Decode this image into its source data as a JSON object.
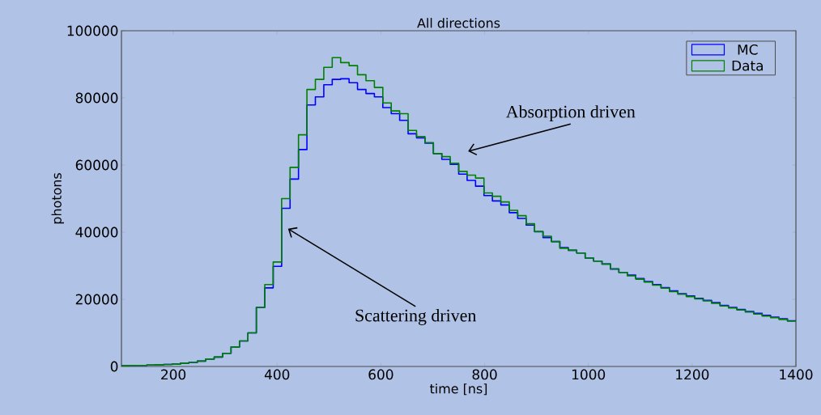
{
  "chart_data": {
    "type": "histogram",
    "title": "All directions",
    "xlabel": "time [ns]",
    "ylabel": "photons",
    "bins": [
      100,
      116.25,
      132.5,
      148.75,
      165,
      181.25,
      197.5,
      213.75,
      230,
      246.25,
      262.5,
      278.75,
      295,
      311.25,
      327.5,
      343.75,
      360,
      376.25,
      392.5,
      408.75,
      425,
      441.25,
      457.5,
      473.75,
      490,
      506.25,
      522.5,
      538.75,
      555,
      571.25,
      587.5,
      603.75,
      620,
      636.25,
      652.5,
      668.75,
      685,
      701.25,
      717.5,
      733.75,
      750,
      766.25,
      782.5,
      798.75,
      815,
      831.25,
      847.5,
      863.75,
      880,
      896.25,
      912.5,
      928.75,
      945,
      961.25,
      977.5,
      993.75,
      1010,
      1026.25,
      1042.5,
      1058.75,
      1075,
      1091.25,
      1107.5,
      1123.75,
      1140,
      1156.25,
      1172.5,
      1188.75,
      1205,
      1221.25,
      1237.5,
      1253.75,
      1270,
      1286.25,
      1302.5,
      1318.75,
      1335,
      1351.25,
      1367.5,
      1383.75,
      1400
    ],
    "series": [
      {
        "name": "MC",
        "color": "#0000ff",
        "values": [
          200,
          300,
          300,
          400,
          500,
          600,
          700,
          1000,
          1200,
          1600,
          2200,
          2800,
          3900,
          5800,
          7600,
          10000,
          17600,
          23400,
          29800,
          47100,
          55800,
          64600,
          77900,
          80300,
          83900,
          85500,
          85700,
          84500,
          82500,
          81300,
          80300,
          77100,
          75300,
          73300,
          69300,
          68100,
          66500,
          63400,
          61700,
          60200,
          57300,
          55400,
          53700,
          50900,
          49300,
          48100,
          45800,
          44100,
          42100,
          40100,
          38400,
          37200,
          35400,
          34600,
          33800,
          32300,
          31400,
          30500,
          29000,
          28000,
          27200,
          26200,
          25300,
          24400,
          23500,
          22500,
          21700,
          21000,
          20300,
          19700,
          19000,
          18200,
          17600,
          17000,
          16400,
          15800,
          15200,
          14700,
          14200,
          13600
        ]
      },
      {
        "name": "Data",
        "color": "#008000",
        "values": [
          200,
          300,
          300,
          400,
          500,
          600,
          700,
          1000,
          1200,
          1600,
          2200,
          2800,
          3900,
          5800,
          7600,
          10000,
          17600,
          24400,
          31100,
          50000,
          59300,
          69000,
          82500,
          85500,
          89100,
          92000,
          90500,
          89600,
          86900,
          85100,
          83100,
          78500,
          76100,
          75300,
          70300,
          68500,
          66700,
          63400,
          62500,
          60500,
          58100,
          57000,
          56100,
          51700,
          50700,
          49000,
          46500,
          44900,
          42500,
          40200,
          38800,
          37200,
          35200,
          34600,
          33800,
          32300,
          31400,
          30500,
          29100,
          28000,
          27000,
          26000,
          25100,
          24200,
          23300,
          22300,
          21500,
          20800,
          20100,
          19500,
          18800,
          18000,
          17400,
          16800,
          16200,
          15600,
          15000,
          14500,
          14000,
          13500
        ]
      }
    ],
    "xlim": [
      100,
      1400
    ],
    "xticks": [
      200,
      400,
      600,
      800,
      1000,
      1200,
      1400
    ],
    "ylim": [
      0,
      100000
    ],
    "yticks": [
      0,
      20000,
      40000,
      60000,
      80000,
      100000
    ],
    "legend": "top right",
    "annotations": [
      "Absorption driven",
      "Scattering driven"
    ]
  }
}
